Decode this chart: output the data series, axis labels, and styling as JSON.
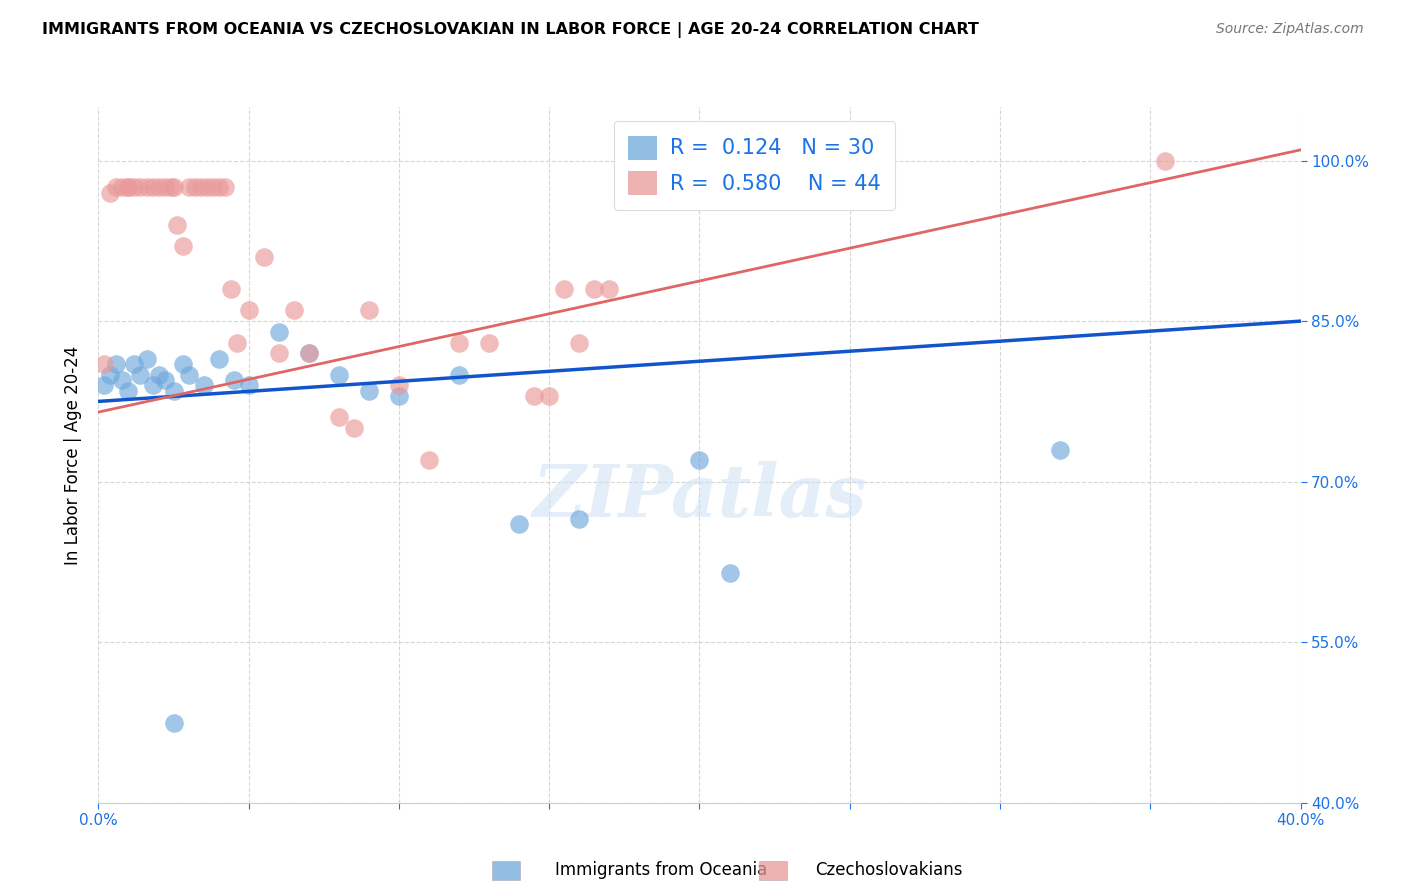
{
  "title": "IMMIGRANTS FROM OCEANIA VS CZECHOSLOVAKIAN IN LABOR FORCE | AGE 20-24 CORRELATION CHART",
  "source": "Source: ZipAtlas.com",
  "ylabel": "In Labor Force | Age 20-24",
  "xlim": [
    0.0,
    0.4
  ],
  "ylim": [
    0.4,
    1.05
  ],
  "ytick_positions": [
    0.4,
    0.55,
    0.7,
    0.85,
    1.0
  ],
  "ytick_labels": [
    "40.0%",
    "55.0%",
    "70.0%",
    "85.0%",
    "100.0%"
  ],
  "blue_color": "#6fa8dc",
  "pink_color": "#ea9999",
  "blue_line_color": "#1155cc",
  "pink_line_color": "#e06666",
  "legend_R_blue": "0.124",
  "legend_N_blue": "30",
  "legend_R_pink": "0.580",
  "legend_N_pink": "44",
  "blue_label": "Immigrants from Oceania",
  "pink_label": "Czechoslovakians",
  "blue_scatter_x": [
    0.002,
    0.004,
    0.006,
    0.008,
    0.01,
    0.012,
    0.014,
    0.016,
    0.018,
    0.02,
    0.022,
    0.025,
    0.028,
    0.03,
    0.035,
    0.04,
    0.045,
    0.05,
    0.06,
    0.07,
    0.08,
    0.09,
    0.1,
    0.12,
    0.14,
    0.16,
    0.2,
    0.21,
    0.32,
    0.025
  ],
  "blue_scatter_y": [
    0.79,
    0.8,
    0.81,
    0.795,
    0.785,
    0.81,
    0.8,
    0.815,
    0.79,
    0.8,
    0.795,
    0.785,
    0.81,
    0.8,
    0.79,
    0.815,
    0.795,
    0.79,
    0.84,
    0.82,
    0.8,
    0.785,
    0.78,
    0.8,
    0.66,
    0.665,
    0.72,
    0.615,
    0.73,
    0.475
  ],
  "pink_scatter_x": [
    0.002,
    0.004,
    0.006,
    0.008,
    0.01,
    0.01,
    0.012,
    0.014,
    0.016,
    0.018,
    0.02,
    0.022,
    0.024,
    0.025,
    0.026,
    0.028,
    0.03,
    0.032,
    0.034,
    0.036,
    0.038,
    0.04,
    0.042,
    0.044,
    0.046,
    0.05,
    0.055,
    0.06,
    0.065,
    0.07,
    0.08,
    0.085,
    0.09,
    0.1,
    0.11,
    0.12,
    0.13,
    0.145,
    0.15,
    0.155,
    0.16,
    0.165,
    0.17,
    0.355
  ],
  "pink_scatter_y": [
    0.81,
    0.97,
    0.975,
    0.975,
    0.975,
    0.975,
    0.975,
    0.975,
    0.975,
    0.975,
    0.975,
    0.975,
    0.975,
    0.975,
    0.94,
    0.92,
    0.975,
    0.975,
    0.975,
    0.975,
    0.975,
    0.975,
    0.975,
    0.88,
    0.83,
    0.86,
    0.91,
    0.82,
    0.86,
    0.82,
    0.76,
    0.75,
    0.86,
    0.79,
    0.72,
    0.83,
    0.83,
    0.78,
    0.78,
    0.88,
    0.83,
    0.88,
    0.88,
    1.0
  ],
  "watermark": "ZIPatlas",
  "background_color": "#ffffff",
  "grid_color": "#cccccc"
}
